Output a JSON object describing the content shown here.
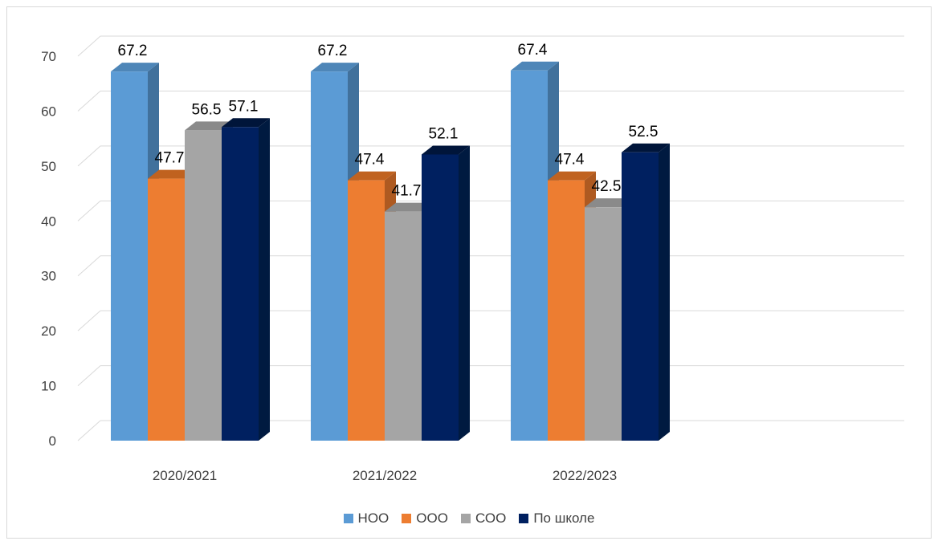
{
  "chart_data": {
    "type": "bar",
    "style": "3d-clustered-column",
    "categories": [
      "2020/2021",
      "2021/2022",
      "2022/2023"
    ],
    "series": [
      {
        "name": "НОО",
        "values": [
          67.2,
          67.2,
          67.4
        ],
        "color": "#5b9bd5",
        "side_color": "#41719c",
        "top_color": "#4e86b8"
      },
      {
        "name": "ООО",
        "values": [
          47.7,
          47.4,
          47.4
        ],
        "color": "#ed7d31",
        "side_color": "#ae5a21",
        "top_color": "#c0621f"
      },
      {
        "name": "СОО",
        "values": [
          56.5,
          41.7,
          42.5
        ],
        "color": "#a5a5a5",
        "side_color": "#7c7c7c",
        "top_color": "#8a8a8a"
      },
      {
        "name": "По школе",
        "values": [
          57.1,
          52.1,
          52.5
        ],
        "color": "#002060",
        "side_color": "#001a40",
        "top_color": "#00153a"
      }
    ],
    "yticks": [
      "0",
      "10",
      "20",
      "30",
      "40",
      "50",
      "60",
      "70"
    ],
    "ylim": [
      0,
      70
    ],
    "grid": true,
    "legend_position": "bottom",
    "data_labels": true
  }
}
